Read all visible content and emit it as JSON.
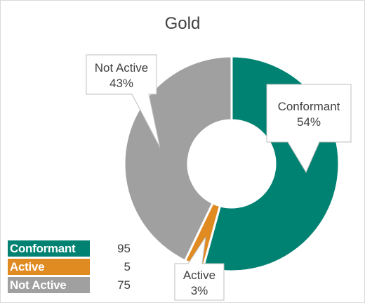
{
  "chart_data": {
    "type": "doughnut",
    "title": "Gold",
    "series": [
      {
        "name": "Conformant",
        "value": 95,
        "percent_label": "54%",
        "color": "#008272"
      },
      {
        "name": "Active",
        "value": 5,
        "percent_label": "3%",
        "color": "#e08a22"
      },
      {
        "name": "Not Active",
        "value": 75,
        "percent_label": "43%",
        "color": "#a0a0a0"
      }
    ]
  }
}
